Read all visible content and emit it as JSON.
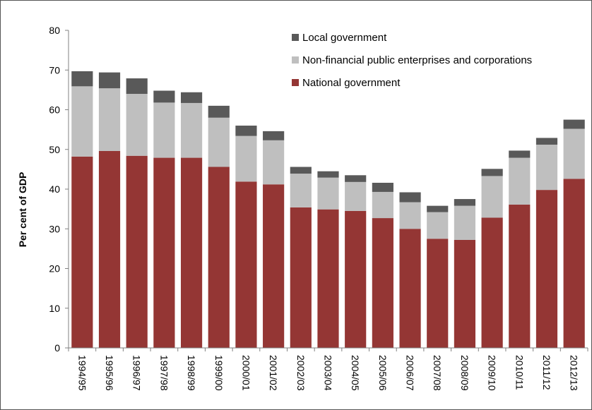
{
  "chart_data": {
    "type": "bar",
    "stacked": true,
    "title": "",
    "xlabel": "",
    "ylabel": "Per cent of GDP",
    "ylim": [
      0,
      80
    ],
    "yticks": [
      0,
      10,
      20,
      30,
      40,
      50,
      60,
      70,
      80
    ],
    "grid": false,
    "legend_position": "top-right",
    "categories": [
      "1994/95",
      "1995/96",
      "1996/97",
      "1997/98",
      "1998/99",
      "1999/00",
      "2000/01",
      "2001/02",
      "2002/03",
      "2003/04",
      "2004/05",
      "2005/06",
      "2006/07",
      "2007/08",
      "2008/09",
      "2009/10",
      "2010/11",
      "2011/12",
      "2012/13"
    ],
    "series": [
      {
        "name": "National government",
        "color": "#943634",
        "values": [
          48.2,
          49.6,
          48.4,
          47.9,
          47.9,
          45.6,
          41.9,
          41.2,
          35.4,
          34.9,
          34.5,
          32.7,
          30.0,
          27.5,
          27.2,
          32.8,
          36.1,
          39.8,
          42.6
        ]
      },
      {
        "name": "Non-financial public enterprises and corporations",
        "color": "#bfbfbf",
        "values": [
          17.7,
          15.8,
          15.6,
          13.9,
          13.8,
          12.4,
          11.5,
          11.1,
          8.5,
          8.0,
          7.3,
          6.6,
          6.7,
          6.7,
          8.6,
          10.5,
          11.8,
          11.4,
          12.6
        ]
      },
      {
        "name": "Local government",
        "color": "#595959",
        "values": [
          3.8,
          4.0,
          3.9,
          3.0,
          2.7,
          3.0,
          2.6,
          2.3,
          1.7,
          1.6,
          1.7,
          2.3,
          2.5,
          1.6,
          1.7,
          1.8,
          1.8,
          1.7,
          2.3
        ]
      }
    ],
    "legend_order": [
      "Local government",
      "Non-financial public enterprises and corporations",
      "National government"
    ]
  }
}
